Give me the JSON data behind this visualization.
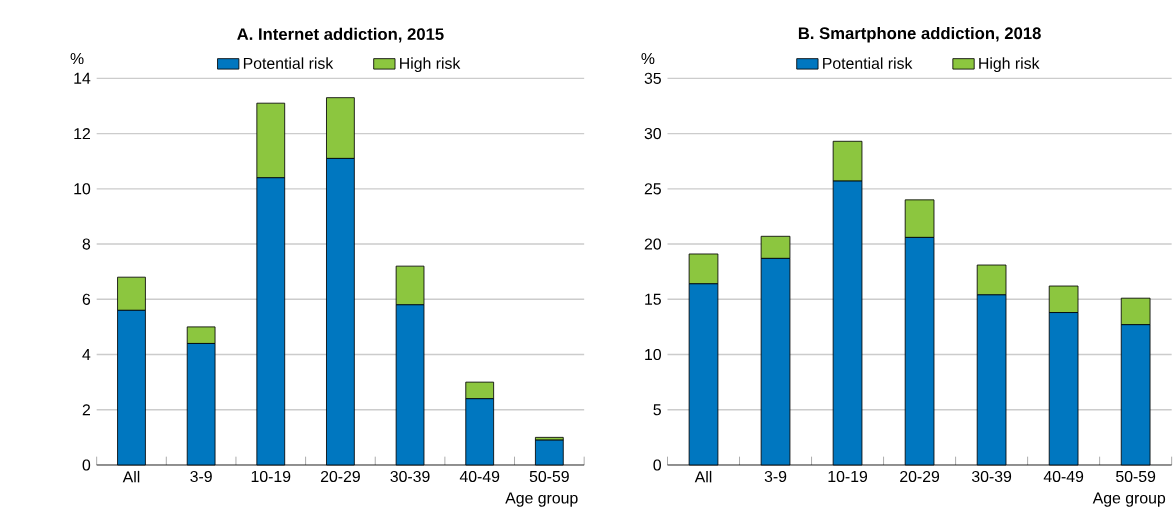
{
  "chart_data": [
    {
      "type": "bar",
      "title": "A. Internet addiction, 2015",
      "xlabel": "Age group",
      "ylabel": "%",
      "categories": [
        "All",
        "3-9",
        "10-19",
        "20-29",
        "30-39",
        "40-49",
        "50-59"
      ],
      "stacked": true,
      "grid": "y",
      "legend": "top",
      "ylim": [
        0,
        14
      ],
      "yticks": [
        0,
        2,
        4,
        6,
        8,
        10,
        12,
        14
      ],
      "series": [
        {
          "name": "Potential risk",
          "color": "#0077c0",
          "values": [
            5.6,
            4.4,
            10.4,
            11.1,
            5.8,
            2.4,
            0.9
          ]
        },
        {
          "name": "High risk",
          "color": "#8cc63f",
          "values": [
            1.2,
            0.6,
            2.7,
            2.2,
            1.4,
            0.6,
            0.1
          ]
        }
      ]
    },
    {
      "type": "bar",
      "title": "B. Smartphone addiction, 2018",
      "xlabel": "Age group",
      "ylabel": "%",
      "categories": [
        "All",
        "3-9",
        "10-19",
        "20-29",
        "30-39",
        "40-49",
        "50-59"
      ],
      "stacked": true,
      "grid": "y",
      "legend": "top",
      "ylim": [
        0,
        35
      ],
      "yticks": [
        0,
        5,
        10,
        15,
        20,
        25,
        30,
        35
      ],
      "series": [
        {
          "name": "Potential risk",
          "color": "#0077c0",
          "values": [
            16.4,
            18.7,
            25.7,
            20.6,
            15.4,
            13.8,
            12.7
          ]
        },
        {
          "name": "High risk",
          "color": "#8cc63f",
          "values": [
            2.7,
            2.0,
            3.6,
            3.4,
            2.7,
            2.4,
            2.4
          ]
        }
      ]
    }
  ]
}
